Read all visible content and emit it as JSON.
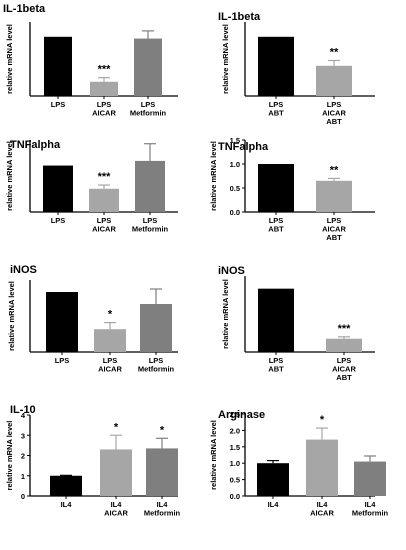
{
  "chart_data": [
    {
      "type": "bar",
      "title": "IL-1beta",
      "ylabel": "relative mRNA level",
      "show_y_ticks": false,
      "categories": [
        [
          "LPS"
        ],
        [
          "LPS",
          "AICAR"
        ],
        [
          "LPS",
          "Metformin"
        ]
      ],
      "values": [
        1.0,
        0.24,
        0.97
      ],
      "errors": [
        0,
        0.07,
        0.13
      ],
      "significance": [
        "",
        "***",
        ""
      ],
      "colors": [
        "#000000",
        "#a6a6a6",
        "#7f7f7f"
      ],
      "ylim": [
        0,
        1.25
      ]
    },
    {
      "type": "bar",
      "title": "IL-1beta",
      "ylabel": "relative mRNA level",
      "show_y_ticks": false,
      "categories": [
        [
          "LPS",
          "ABT"
        ],
        [
          "LPS",
          "AICAR",
          "ABT"
        ]
      ],
      "values": [
        1.0,
        0.51
      ],
      "errors": [
        0,
        0.09
      ],
      "significance": [
        "",
        "**"
      ],
      "colors": [
        "#000000",
        "#a6a6a6"
      ],
      "ylim": [
        0,
        1.25
      ]
    },
    {
      "type": "bar",
      "title": "TNFalpha",
      "ylabel": "relative mRNA level",
      "show_y_ticks": false,
      "categories": [
        [
          "LPS"
        ],
        [
          "LPS",
          "AICAR"
        ],
        [
          "LPS",
          "Metformin"
        ]
      ],
      "values": [
        1.0,
        0.5,
        1.1
      ],
      "errors": [
        0,
        0.08,
        0.37
      ],
      "significance": [
        "",
        "***",
        ""
      ],
      "colors": [
        "#000000",
        "#a6a6a6",
        "#7f7f7f"
      ],
      "ylim": [
        0,
        1.55
      ]
    },
    {
      "type": "bar",
      "title": "TNFalpha",
      "ylabel": "relative mRNA level",
      "show_y_ticks": true,
      "yticks": [
        "0.0",
        "0.5",
        "1.0",
        "1.5"
      ],
      "categories": [
        [
          "LPS",
          "ABT"
        ],
        [
          "LPS",
          "AICAR",
          "ABT"
        ]
      ],
      "values": [
        1.0,
        0.65
      ],
      "errors": [
        0,
        0.05
      ],
      "significance": [
        "",
        "**"
      ],
      "colors": [
        "#000000",
        "#a6a6a6"
      ],
      "ylim": [
        0,
        1.5
      ]
    },
    {
      "type": "bar",
      "title": "iNOS",
      "ylabel": "relative mRNA level",
      "show_y_ticks": false,
      "categories": [
        [
          "LPS"
        ],
        [
          "LPS",
          "AICAR"
        ],
        [
          "LPS",
          "Metformin"
        ]
      ],
      "values": [
        1.0,
        0.38,
        0.8
      ],
      "errors": [
        0,
        0.11,
        0.25
      ],
      "significance": [
        "",
        "*",
        ""
      ],
      "colors": [
        "#000000",
        "#a6a6a6",
        "#7f7f7f"
      ],
      "ylim": [
        0,
        1.2
      ]
    },
    {
      "type": "bar",
      "title": "iNOS",
      "ylabel": "relative mRNA level",
      "show_y_ticks": false,
      "categories": [
        [
          "LPS",
          "ABT"
        ],
        [
          "LPS",
          "AICAR",
          "ABT"
        ]
      ],
      "values": [
        1.0,
        0.21
      ],
      "errors": [
        0,
        0.03
      ],
      "significance": [
        "",
        "***"
      ],
      "colors": [
        "#000000",
        "#a6a6a6"
      ],
      "ylim": [
        0,
        1.2
      ]
    },
    {
      "type": "bar",
      "title": "IL-10",
      "ylabel": "relative mRNA level",
      "show_y_ticks": true,
      "yticks": [
        "0",
        "1",
        "2",
        "3",
        "4"
      ],
      "categories": [
        [
          "IL4"
        ],
        [
          "IL4",
          "AICAR"
        ],
        [
          "IL4",
          "Metformin"
        ]
      ],
      "values": [
        1.0,
        2.3,
        2.35
      ],
      "errors": [
        0.02,
        0.7,
        0.5
      ],
      "significance": [
        "",
        "*",
        "*"
      ],
      "colors": [
        "#000000",
        "#a6a6a6",
        "#7f7f7f"
      ],
      "ylim": [
        0,
        4
      ]
    },
    {
      "type": "bar",
      "title": "Arginase",
      "ylabel": "relative mRNA level",
      "show_y_ticks": true,
      "yticks": [
        "0.0",
        "0.5",
        "1.0",
        "1.5",
        "2.0",
        "2.5"
      ],
      "categories": [
        [
          "IL4"
        ],
        [
          "IL4",
          "AICAR"
        ],
        [
          "IL4",
          "Metformin"
        ]
      ],
      "values": [
        1.0,
        1.72,
        1.05
      ],
      "errors": [
        0.08,
        0.35,
        0.17
      ],
      "significance": [
        "",
        "*",
        ""
      ],
      "colors": [
        "#000000",
        "#a6a6a6",
        "#7f7f7f"
      ],
      "ylim": [
        0,
        2.5
      ]
    }
  ]
}
